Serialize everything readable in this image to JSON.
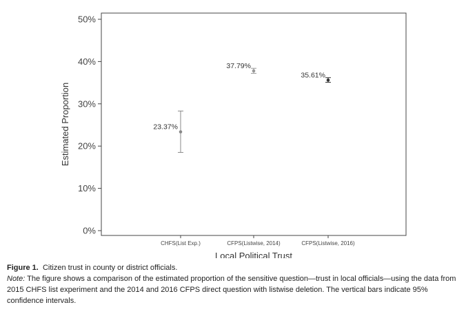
{
  "chart_data": {
    "type": "scatter",
    "subtype": "point-with-error-bars",
    "xlabel": "Local Political Trust",
    "ylabel": "Estimated Proportion",
    "ylim": [
      0,
      50
    ],
    "yticks": [
      0,
      10,
      20,
      30,
      40,
      50
    ],
    "ytick_labels": [
      "0%",
      "10%",
      "20%",
      "30%",
      "40%",
      "50%"
    ],
    "categories": [
      "CHFS(List Exp.)",
      "CFPS(Listwise, 2014)",
      "CFPS(Listwise, 2016)"
    ],
    "points": [
      {
        "category": "CHFS(List Exp.)",
        "value": 23.37,
        "label": "23.37%",
        "ci_low": 18.5,
        "ci_high": 28.3,
        "color": "#888888"
      },
      {
        "category": "CFPS(Listwise, 2014)",
        "value": 37.79,
        "label": "37.79%",
        "ci_low": 37.2,
        "ci_high": 38.4,
        "color": "#999999"
      },
      {
        "category": "CFPS(Listwise, 2016)",
        "value": 35.61,
        "label": "35.61%",
        "ci_low": 35.1,
        "ci_high": 36.2,
        "color": "#333333"
      }
    ],
    "grid": false
  },
  "caption": {
    "label": "Figure 1.",
    "title": "Citizen trust in county or district officials.",
    "note_label": "Note:",
    "note_text": "The figure shows a comparison of the estimated proportion of the sensitive question—trust in local officials—using the data from 2015 CHFS list experiment and the 2014 and 2016 CFPS direct question with listwise deletion. The vertical bars indicate 95% confidence intervals."
  }
}
